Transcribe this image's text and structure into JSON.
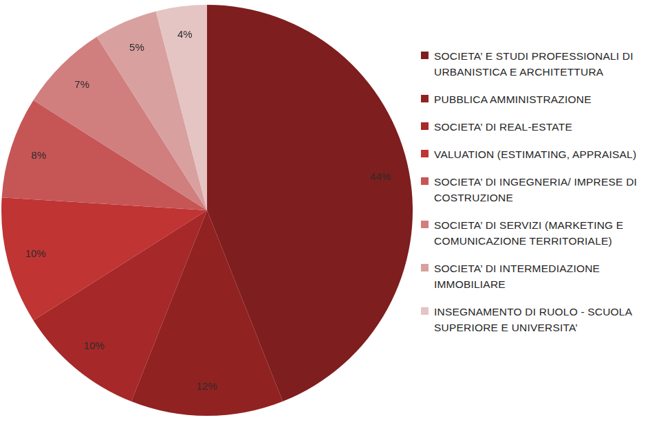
{
  "chart_data": {
    "type": "pie",
    "categories": [
      "SOCIETA’ E STUDI PROFESSIONALI DI URBANISTICA E ARCHITETTURA",
      "PUBBLICA AMMINISTRAZIONE",
      "SOCIETA’ DI REAL-ESTATE",
      "VALUATION (ESTIMATING,  APPRAISAL)",
      "SOCIETA’ DI INGEGNERIA/ IMPRESE DI COSTRUZIONE",
      "SOCIETA’ DI SERVIZI (MARKETING E COMUNICAZIONE TERRITORIALE)",
      "SOCIETA’ DI INTERMEDIAZIONE IMMOBILIARE",
      "INSEGNAMENTO DI RUOLO - SCUOLA SUPERIORE E UNIVERSITA’"
    ],
    "values": [
      44,
      12,
      10,
      10,
      8,
      7,
      5,
      4
    ],
    "value_labels": [
      "44%",
      "12%",
      "10%",
      "10%",
      "8%",
      "7%",
      "5%",
      "4%"
    ],
    "colors": [
      "#7e1e1e",
      "#912222",
      "#a62828",
      "#c03434",
      "#c65656",
      "#d17e7e",
      "#d9a0a0",
      "#e5c4c4"
    ],
    "legend": "right",
    "data_labels": true
  }
}
